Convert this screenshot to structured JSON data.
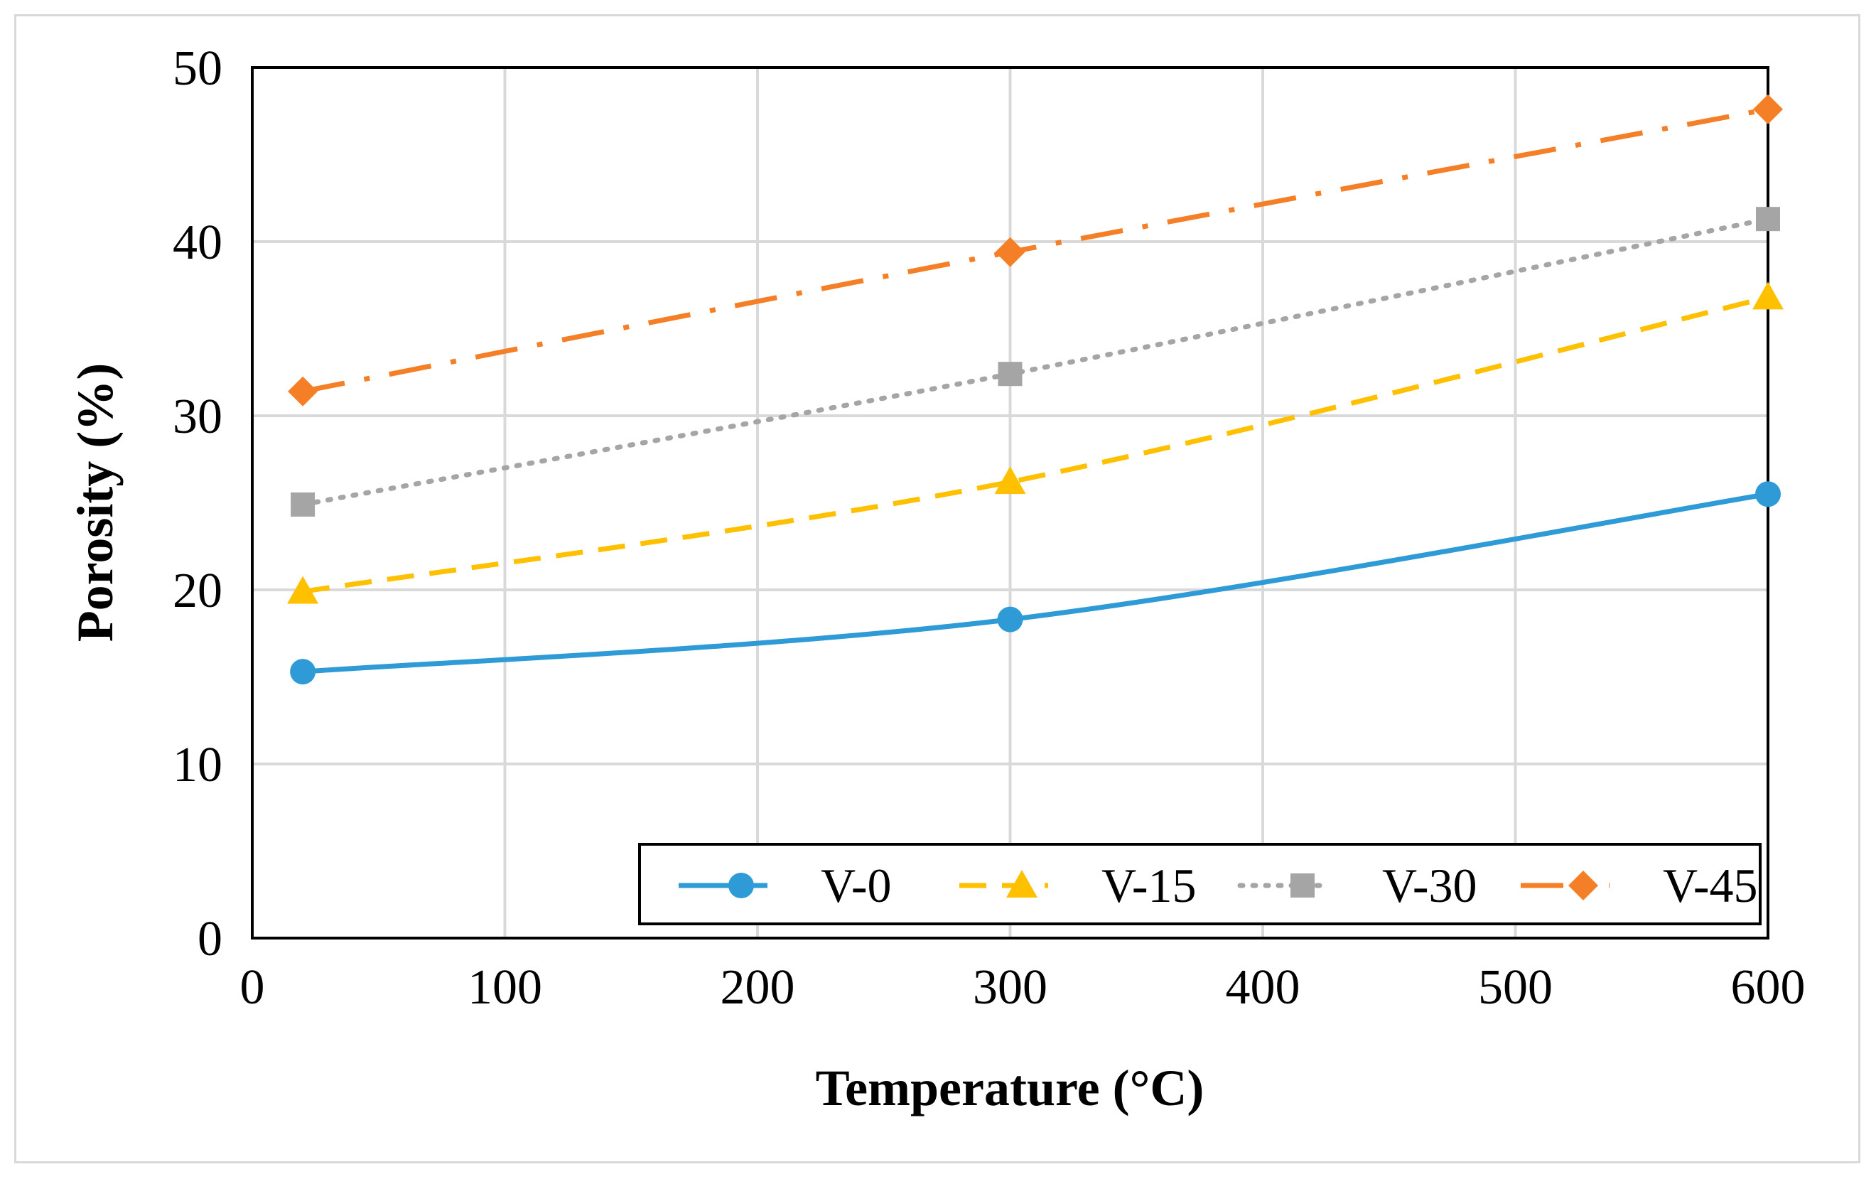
{
  "chart_data": {
    "type": "line",
    "title": "",
    "xlabel": "Temperature (°C)",
    "ylabel": "Porosity (%)",
    "xlim": [
      0,
      600
    ],
    "ylim": [
      0,
      50
    ],
    "x_ticks": [
      0,
      100,
      200,
      300,
      400,
      500,
      600
    ],
    "y_ticks": [
      0,
      10,
      20,
      30,
      40,
      50
    ],
    "x_tick_labels": [
      "0",
      "100",
      "200",
      "300",
      "400",
      "500",
      "600"
    ],
    "y_tick_labels": [
      "0",
      "10",
      "20",
      "30",
      "40",
      "50"
    ],
    "grid": true,
    "legend_position": "bottom-right",
    "smooth": true,
    "series": [
      {
        "name": "V-0",
        "x": [
          20,
          300,
          600
        ],
        "y": [
          15.3,
          18.3,
          25.5
        ],
        "color": "#2e9bd6",
        "marker": "circle",
        "dash": "solid"
      },
      {
        "name": "V-15",
        "x": [
          20,
          300,
          600
        ],
        "y": [
          19.9,
          26.2,
          36.8
        ],
        "color": "#ffc000",
        "marker": "triangle",
        "dash": "dashed"
      },
      {
        "name": "V-30",
        "x": [
          20,
          300,
          600
        ],
        "y": [
          24.9,
          32.4,
          41.3
        ],
        "color": "#a5a5a5",
        "marker": "square",
        "dash": "dotted"
      },
      {
        "name": "V-45",
        "x": [
          20,
          300,
          600
        ],
        "y": [
          31.4,
          39.4,
          47.6
        ],
        "color": "#f47f27",
        "marker": "diamond",
        "dash": "dashdot"
      }
    ]
  }
}
